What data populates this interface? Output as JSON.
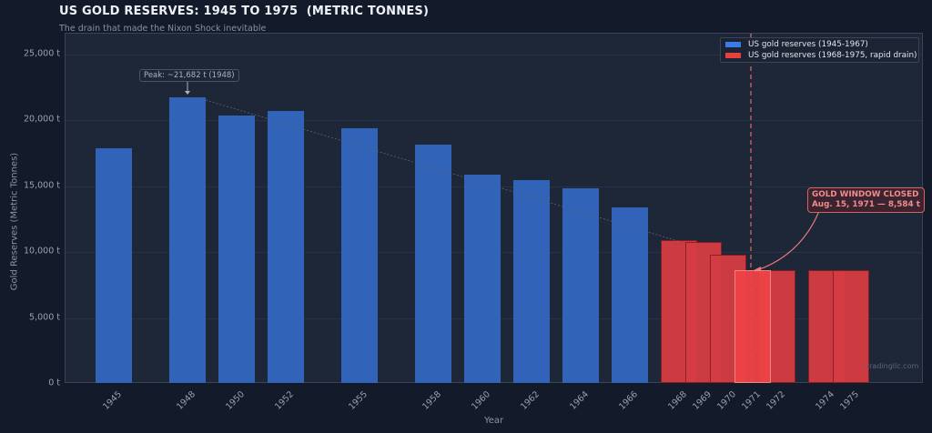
{
  "header": {
    "title": "US GOLD RESERVES: 1945 TO 1975  (METRIC TONNES)",
    "subtitle": "The drain that made the Nixon Shock inevitable"
  },
  "axes": {
    "xlabel": "Year",
    "ylabel": "Gold Reserves (Metric Tonnes)",
    "yticks": [
      "0 t",
      "5,000 t",
      "10,000 t",
      "15,000 t",
      "20,000 t",
      "25,000 t"
    ]
  },
  "legend": {
    "items": [
      {
        "label": "US gold reserves  (1945-1967)",
        "color": "#3b7ae8"
      },
      {
        "label": "US gold reserves  (1968-1975, rapid drain)",
        "color": "#e8403f"
      }
    ]
  },
  "annotations": {
    "peak": "Peak: ~21,682 t  (1948)",
    "gold_window_line1": "GOLD WINDOW CLOSED",
    "gold_window_line2": "Aug. 15, 1971  —  8,584 t",
    "watermark": "tradingllc.com"
  },
  "colors": {
    "blue_bar": "#3163b8",
    "red_bar": "#d63c43",
    "highlight_bar": "#ee4346",
    "annotation_red": "#f28b8b",
    "background": "#131a2a",
    "plot_bg": "#1e2737"
  },
  "chart_data": {
    "type": "bar",
    "title": "US GOLD RESERVES: 1945 TO 1975  (METRIC TONNES)",
    "subtitle": "The drain that made the Nixon Shock inevitable",
    "xlabel": "Year",
    "ylabel": "Gold Reserves (Metric Tonnes)",
    "ylim": [
      0,
      26500
    ],
    "grid": true,
    "legend_position": "upper right",
    "categories": [
      "1945",
      "1948",
      "1950",
      "1952",
      "1955",
      "1958",
      "1960",
      "1962",
      "1964",
      "1966",
      "1968",
      "1969",
      "1970",
      "1971",
      "1972",
      "1974",
      "1975"
    ],
    "series": [
      {
        "name": "US gold reserves  (1945-1967)",
        "color": "#3163b8",
        "x": [
          1945,
          1948,
          1950,
          1952,
          1955,
          1958,
          1960,
          1962,
          1964,
          1966
        ],
        "values": [
          17820,
          21682,
          20300,
          20650,
          19340,
          18060,
          15810,
          15370,
          14780,
          13330
        ]
      },
      {
        "name": "US gold reserves  (1968-1975, rapid drain)",
        "color": "#d63c43",
        "x": [
          1968,
          1969,
          1970,
          1971,
          1972,
          1974,
          1975
        ],
        "values": [
          10840,
          10720,
          9770,
          8584,
          8580,
          8580,
          8580
        ]
      }
    ],
    "annotations": [
      {
        "text": "Peak: ~21,682 t  (1948)",
        "x": 1948,
        "y": 21682
      },
      {
        "text": "GOLD WINDOW CLOSED\nAug. 15, 1971  —  8,584 t",
        "x": 1971,
        "y": 8584
      },
      {
        "type": "vline",
        "x": 1971,
        "style": "dashed"
      }
    ]
  }
}
